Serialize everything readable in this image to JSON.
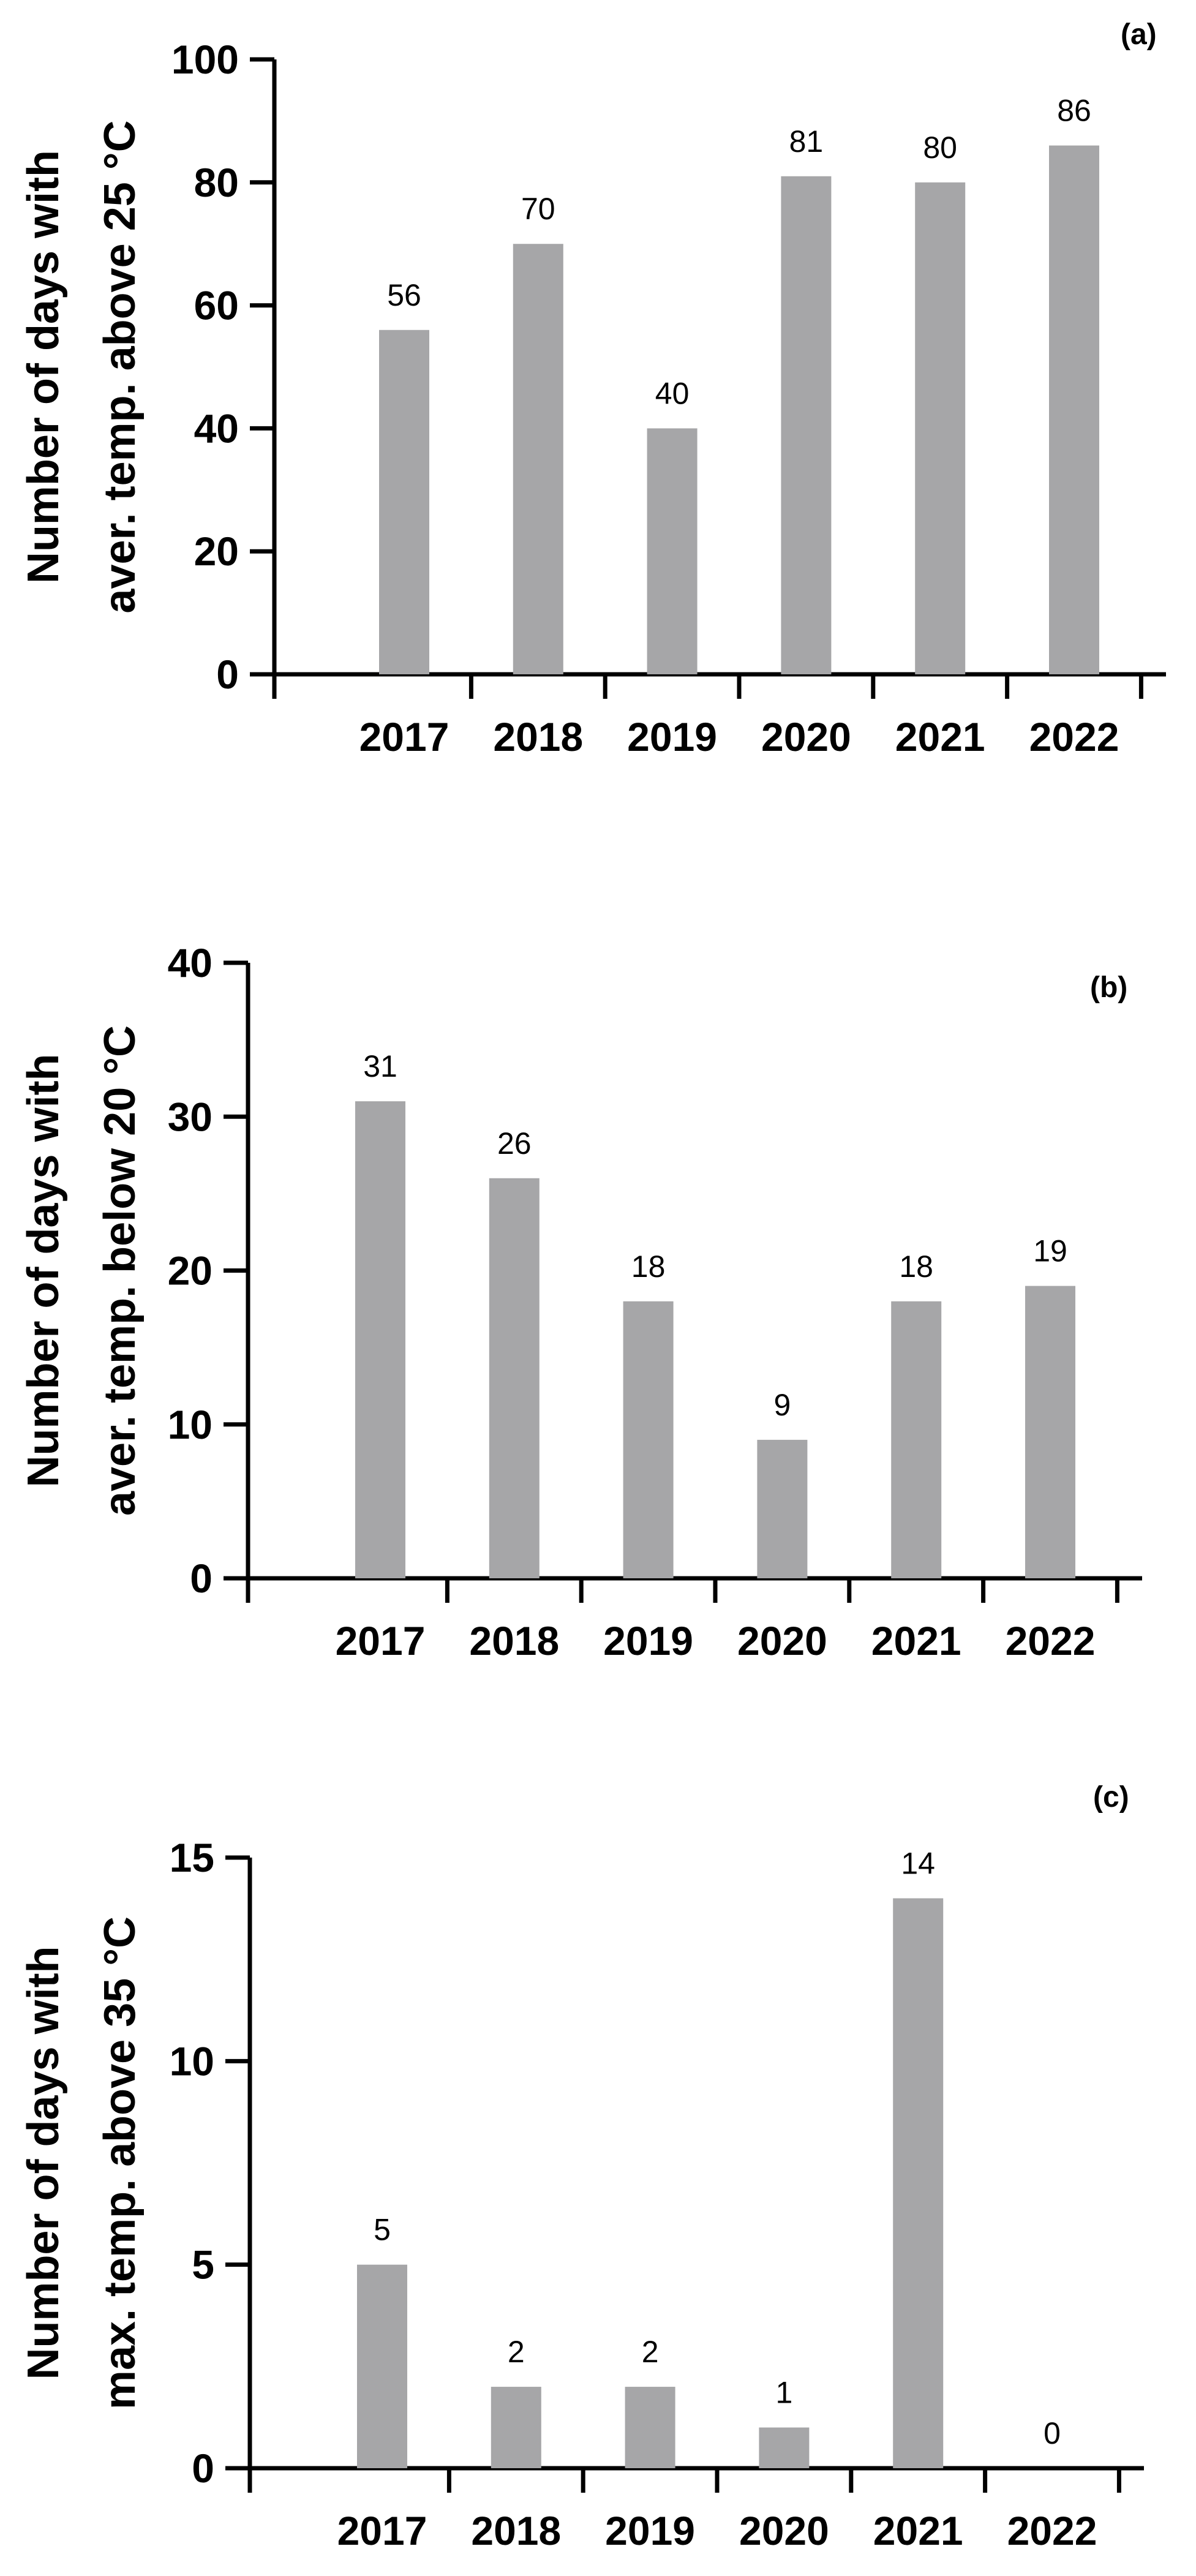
{
  "chart_data": [
    {
      "type": "bar",
      "panel_label": "(a)",
      "ylabel_lines": [
        "Number of days with",
        "aver. temp. above 25 °C"
      ],
      "categories": [
        "2017",
        "2018",
        "2019",
        "2020",
        "2021",
        "2022"
      ],
      "values": [
        56,
        70,
        40,
        81,
        80,
        86
      ],
      "data_labels": [
        "56",
        "70",
        "40",
        "81",
        "80",
        "86"
      ],
      "ylim": [
        0,
        100
      ],
      "yticks": [
        0,
        20,
        40,
        60,
        80,
        100
      ],
      "ytick_labels": [
        "0",
        "20",
        "40",
        "60",
        "80",
        "100"
      ],
      "color": "#a6a6a8",
      "grid": false
    },
    {
      "type": "bar",
      "panel_label": "(b)",
      "ylabel_lines": [
        "Number of days with",
        "aver. temp. below 20 °C"
      ],
      "categories": [
        "2017",
        "2018",
        "2019",
        "2020",
        "2021",
        "2022"
      ],
      "values": [
        31,
        26,
        18,
        9,
        18,
        19
      ],
      "data_labels": [
        "31",
        "26",
        "18",
        "9",
        "18",
        "19"
      ],
      "ylim": [
        0,
        40
      ],
      "yticks": [
        0,
        10,
        20,
        30,
        40
      ],
      "ytick_labels": [
        "0",
        "10",
        "20",
        "30",
        "40"
      ],
      "color": "#a6a6a8",
      "grid": false
    },
    {
      "type": "bar",
      "panel_label": "(c)",
      "ylabel_lines": [
        "Number of days with",
        "max. temp. above 35 °C"
      ],
      "categories": [
        "2017",
        "2018",
        "2019",
        "2020",
        "2021",
        "2022"
      ],
      "values": [
        5,
        2,
        2,
        1,
        14,
        0
      ],
      "data_labels": [
        "5",
        "2",
        "2",
        "1",
        "14",
        "0"
      ],
      "ylim": [
        0,
        15
      ],
      "yticks": [
        0,
        5,
        10,
        15
      ],
      "ytick_labels": [
        "0",
        "5",
        "10",
        "15"
      ],
      "color": "#a6a6a8",
      "grid": false
    }
  ]
}
